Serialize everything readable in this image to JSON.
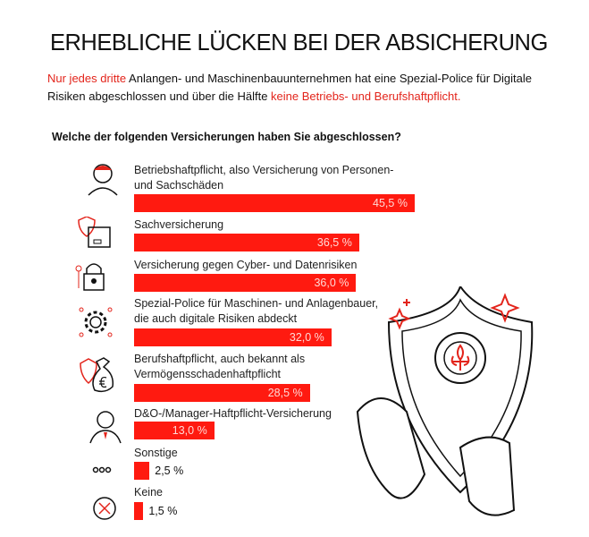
{
  "title": "ERHEBLICHE LÜCKEN BEI DER ABSICHERUNG",
  "intro": {
    "part1": "Nur jedes dritte",
    "part2": " Anlangen- und Maschinenbauunternehmen hat eine Spezial-Police für Digitale Risiken abgeschlossen und über die Hälfte ",
    "part3": "keine Betriebs- und Berufshaftpflicht."
  },
  "colors": {
    "accent": "#ff1a10",
    "text": "#111111"
  },
  "chart_data": {
    "type": "bar",
    "orientation": "horizontal",
    "title": "Welche der folgenden Versicherungen haben Sie abgeschlossen?",
    "categories": [
      "Betriebshaftpflicht, also Versicherung von Personen- und Sachschäden",
      "Sachversicherung",
      "Versicherung gegen Cyber- und Datenrisiken",
      "Spezial-Police für Maschinen- und Anlagenbauer, die auch digitale Risiken abdeckt",
      "Berufshaftpflicht, auch bekannt als Vermögensschadenhaftpflicht",
      "D&O-/Manager-Haftpflicht-Versicherung",
      "Sonstige",
      "Keine"
    ],
    "values": [
      45.5,
      36.5,
      36.0,
      32.0,
      28.5,
      13.0,
      2.5,
      1.5
    ],
    "value_labels": [
      "45,5 %",
      "36,5 %",
      "36,0 %",
      "32,0 %",
      "28,5 %",
      "13,0 %",
      "2,5 %",
      "1,5 %"
    ],
    "icons": [
      "worker-icon",
      "shield-box-icon",
      "padlock-chip-icon",
      "gear-icon",
      "money-bag-shield-icon",
      "manager-icon",
      "dots-icon",
      "x-circle-icon"
    ],
    "unit": "%"
  }
}
